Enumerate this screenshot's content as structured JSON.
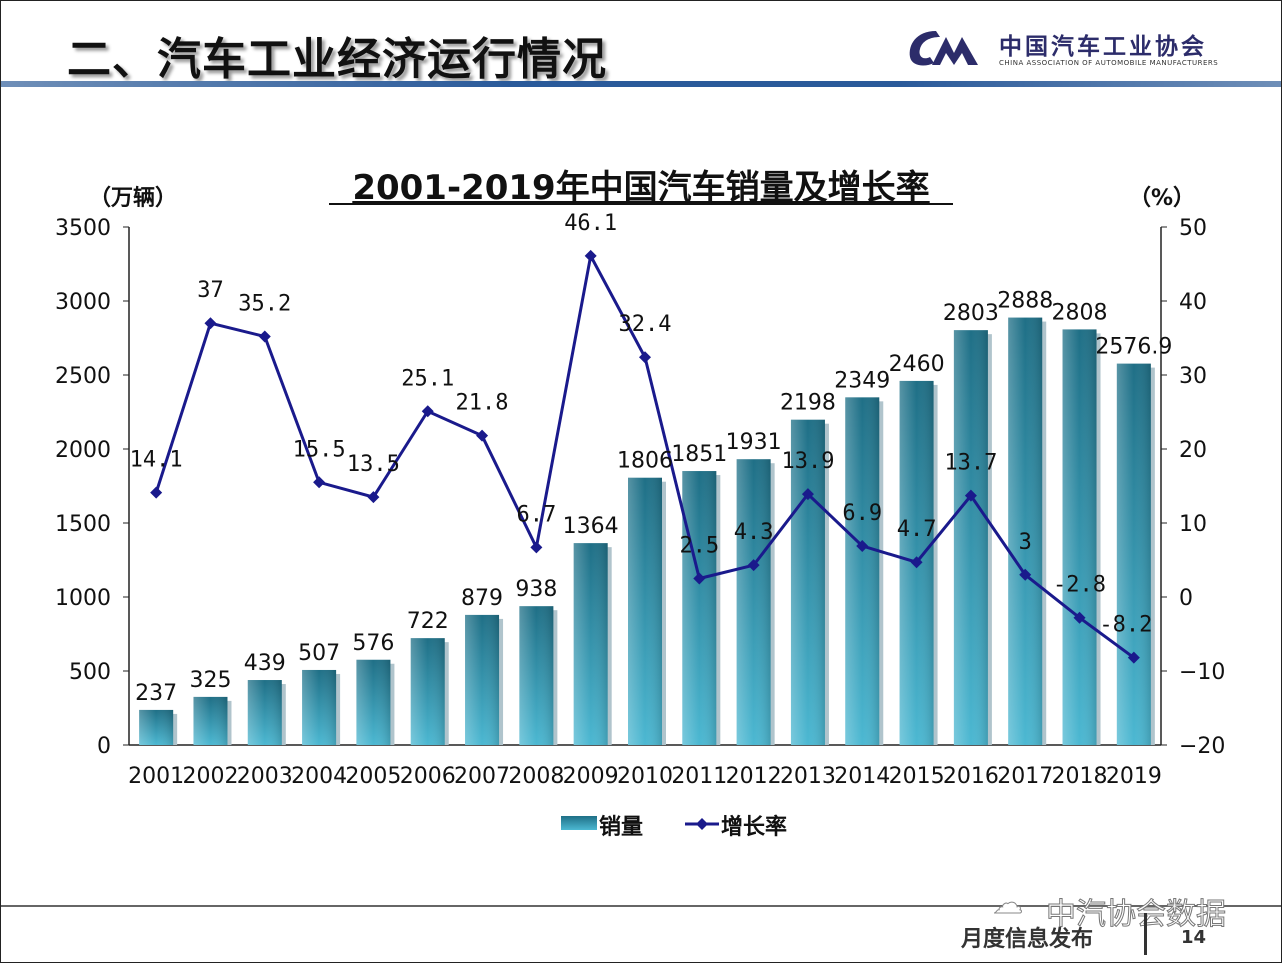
{
  "header": {
    "title": "二、汽车工业经济运行情况",
    "org_cn": "中国汽车工业协会",
    "org_en": "CHINA ASSOCIATION OF AUTOMOBILE MANUFACTURERS",
    "logo_text": "CAM"
  },
  "footer": {
    "text": "月度信息发布",
    "page": "14",
    "watermark": "中汽协会数据",
    "watermark_icon": "wechat-icon"
  },
  "colors": {
    "bar": "#3aa5c0",
    "bar_dark": "#1f6f86",
    "line": "#1a1a8c"
  },
  "chart_data": {
    "type": "bar+line",
    "title": "2001-2019年中国汽车销量及增长率",
    "ylabel": "（万辆）",
    "y2label": "（%）",
    "categories": [
      "2001",
      "2002",
      "2003",
      "2004",
      "2005",
      "2006",
      "2007",
      "2008",
      "2009",
      "2010",
      "2011",
      "2012",
      "2013",
      "2014",
      "2015",
      "2016",
      "2017",
      "2018",
      "2019"
    ],
    "ylim": [
      0,
      3500
    ],
    "yticks": [
      0,
      500,
      1000,
      1500,
      2000,
      2500,
      3000,
      3500
    ],
    "y2lim": [
      -20,
      50
    ],
    "y2ticks": [
      -20,
      -10,
      0,
      10,
      20,
      30,
      40,
      50
    ],
    "series": [
      {
        "name": "销量",
        "type": "bar",
        "axis": "left",
        "values": [
          237,
          325,
          439,
          507,
          576,
          722,
          879,
          938,
          1364,
          1806,
          1851,
          1931,
          2198,
          2349,
          2460,
          2803,
          2888,
          2808,
          2576.9
        ]
      },
      {
        "name": "增长率",
        "type": "line",
        "axis": "right",
        "values": [
          14.1,
          37,
          35.2,
          15.5,
          13.5,
          25.1,
          21.8,
          6.7,
          46.1,
          32.4,
          2.5,
          4.3,
          13.9,
          6.9,
          4.7,
          13.7,
          3,
          -2.8,
          -8.2
        ]
      }
    ],
    "legend": "bottom",
    "grid": false
  }
}
